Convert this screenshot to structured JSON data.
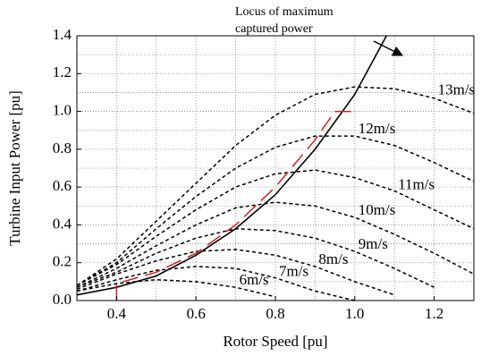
{
  "chart_data": {
    "type": "line",
    "x_label": "Rotor Speed [pu]",
    "y_label": "Turbine Input Power [pu]",
    "annotation": [
      "Locus of maximum",
      "captured power"
    ],
    "xlim": [
      0.3,
      1.3
    ],
    "ylim": [
      0,
      1.4
    ],
    "xticks": [
      0.4,
      0.6,
      0.8,
      {
        "value": 1,
        "label": "1.0"
      },
      1.2
    ],
    "yticks": [
      {
        "value": 0,
        "label": "0.0"
      },
      0.2,
      0.4,
      0.6,
      0.8,
      {
        "value": 1,
        "label": "1.0"
      },
      1.2,
      1.4
    ],
    "xminorticks": [
      0.3,
      0.5,
      0.7,
      0.9,
      1.1,
      1.3
    ],
    "yminorticks": [
      0.1,
      0.3,
      0.5,
      0.7,
      0.9,
      1.1,
      1.3
    ],
    "grid": true,
    "series": [
      {
        "name": "13m/s",
        "color": "#000000",
        "style": "dotted",
        "x": [
          0.3,
          0.4,
          0.5,
          0.6,
          0.7,
          0.8,
          0.9,
          1.0,
          1.1,
          1.2,
          1.3
        ],
        "values": [
          0.08,
          0.22,
          0.42,
          0.62,
          0.82,
          0.98,
          1.09,
          1.13,
          1.12,
          1.07,
          0.99
        ]
      },
      {
        "name": "12m/s",
        "color": "#000000",
        "style": "dotted",
        "x": [
          0.3,
          0.4,
          0.5,
          0.6,
          0.7,
          0.8,
          0.9,
          1.0,
          1.1,
          1.2,
          1.3
        ],
        "values": [
          0.08,
          0.2,
          0.38,
          0.55,
          0.7,
          0.81,
          0.87,
          0.87,
          0.82,
          0.73,
          0.63
        ]
      },
      {
        "name": "11m/s",
        "color": "#000000",
        "style": "dotted",
        "x": [
          0.3,
          0.4,
          0.5,
          0.6,
          0.7,
          0.8,
          0.9,
          1.0,
          1.1,
          1.2,
          1.3
        ],
        "values": [
          0.08,
          0.19,
          0.34,
          0.48,
          0.6,
          0.67,
          0.69,
          0.65,
          0.58,
          0.48,
          0.38
        ]
      },
      {
        "name": "10m/s",
        "color": "#000000",
        "style": "dotted",
        "x": [
          0.3,
          0.4,
          0.5,
          0.6,
          0.7,
          0.8,
          0.9,
          1.0,
          1.1,
          1.2,
          1.3
        ],
        "values": [
          0.07,
          0.17,
          0.29,
          0.4,
          0.49,
          0.52,
          0.5,
          0.44,
          0.35,
          0.25,
          0.14
        ]
      },
      {
        "name": "9m/s",
        "color": "#000000",
        "style": "dotted",
        "x": [
          0.3,
          0.4,
          0.5,
          0.6,
          0.7,
          0.8,
          0.9,
          1.0,
          1.1,
          1.2,
          1.3
        ],
        "values": [
          0.07,
          0.15,
          0.25,
          0.33,
          0.38,
          0.37,
          0.33,
          0.26,
          0.17,
          0.07,
          null
        ]
      },
      {
        "name": "8m/s",
        "color": "#000000",
        "style": "dotted",
        "x": [
          0.3,
          0.4,
          0.5,
          0.6,
          0.7,
          0.8,
          0.9,
          1.0,
          1.1
        ],
        "values": [
          0.06,
          0.14,
          0.21,
          0.26,
          0.27,
          0.24,
          0.18,
          0.1,
          0.03
        ]
      },
      {
        "name": "7m/s",
        "color": "#000000",
        "style": "dotted",
        "x": [
          0.3,
          0.4,
          0.5,
          0.6,
          0.7,
          0.8,
          0.9,
          1.0
        ],
        "values": [
          0.05,
          0.11,
          0.16,
          0.18,
          0.17,
          0.12,
          0.05,
          0
        ]
      },
      {
        "name": "6m/s",
        "color": "#000000",
        "style": "dotted",
        "x": [
          0.3,
          0.4,
          0.5,
          0.6,
          0.7,
          0.8
        ],
        "values": [
          0.05,
          0.09,
          0.11,
          0.1,
          0.07,
          0.02
        ]
      },
      {
        "color": "#000000",
        "style": "solid",
        "x": [
          0.3,
          0.4,
          0.5,
          0.6,
          0.7,
          0.8,
          0.9,
          1.0,
          1.08
        ],
        "values": [
          0.03,
          0.07,
          0.13,
          0.24,
          0.38,
          0.56,
          0.8,
          1.09,
          1.4
        ]
      },
      {
        "color": "#d02020",
        "style": "dashed",
        "x": [
          0.4,
          0.4,
          0.5,
          0.6,
          0.7,
          0.8,
          0.9,
          0.95,
          1.0
        ],
        "values": [
          0,
          0.09,
          0.15,
          0.25,
          0.4,
          0.6,
          0.85,
          1.0,
          1.0
        ]
      }
    ]
  }
}
